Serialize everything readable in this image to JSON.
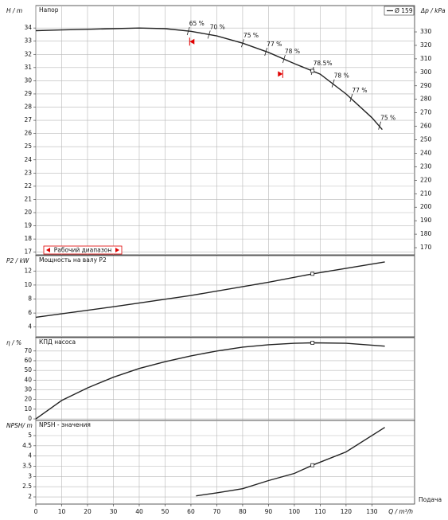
{
  "chart_data": [
    {
      "type": "line",
      "title": "Напор",
      "ylabel": "H / m",
      "y2label": "Δp / kPa",
      "x": [
        0,
        10,
        20,
        30,
        40,
        50,
        60,
        70,
        80,
        90,
        100,
        110,
        120,
        130,
        134
      ],
      "series": [
        {
          "name": "Ø 159",
          "color": "#222222",
          "values": [
            33.8,
            33.85,
            33.9,
            33.95,
            34.0,
            33.95,
            33.75,
            33.4,
            32.85,
            32.15,
            31.3,
            30.5,
            29.0,
            27.2,
            26.3
          ]
        }
      ],
      "annotations": [
        {
          "x": 59,
          "y": 33.77,
          "text": "65 %"
        },
        {
          "x": 67,
          "y": 33.5,
          "text": "70 %"
        },
        {
          "x": 80,
          "y": 32.85,
          "text": "75 %"
        },
        {
          "x": 89,
          "y": 32.2,
          "text": "77 %"
        },
        {
          "x": 96,
          "y": 31.65,
          "text": "78 %"
        },
        {
          "x": 107,
          "y": 30.75,
          "text": "78.5%"
        },
        {
          "x": 115,
          "y": 29.8,
          "text": "78 %"
        },
        {
          "x": 122,
          "y": 28.7,
          "text": "77 %"
        },
        {
          "x": 133,
          "y": 26.6,
          "text": "75 %"
        }
      ],
      "duty_point": {
        "x": 107,
        "y": 30.75
      },
      "work_range": [
        59.5,
        95.5
      ],
      "work_range_label": "Рабочий диапазон",
      "xlim": [
        0,
        146.5
      ],
      "xticks": [
        0,
        10,
        20,
        30,
        40,
        50,
        60,
        70,
        80,
        90,
        100,
        110,
        120,
        130
      ],
      "ylim": [
        16.8,
        35.7
      ],
      "yticks": [
        17,
        18,
        19,
        20,
        21,
        22,
        23,
        24,
        25,
        26,
        27,
        28,
        29,
        30,
        31,
        32,
        33,
        34
      ],
      "y2lim": [
        164.7,
        349.5
      ],
      "y2ticks": [
        170,
        180,
        190,
        200,
        210,
        220,
        230,
        240,
        250,
        260,
        270,
        280,
        290,
        300,
        310,
        320,
        330
      ],
      "grid": true,
      "legend": "top-right"
    },
    {
      "type": "line",
      "title": "Мощность на валу P2",
      "ylabel": "P2 / kW",
      "x": [
        0,
        30,
        60,
        90,
        107,
        135
      ],
      "series": [
        {
          "color": "#222222",
          "values": [
            5.4,
            6.9,
            8.5,
            10.4,
            11.6,
            13.3
          ]
        }
      ],
      "duty_point": {
        "x": 107,
        "y": 11.6
      },
      "xlim": [
        0,
        146.5
      ],
      "xticks": [
        0,
        10,
        20,
        30,
        40,
        50,
        60,
        70,
        80,
        90,
        100,
        110,
        120,
        130
      ],
      "ylim": [
        2.6,
        14.2
      ],
      "yticks": [
        4,
        6,
        8,
        10,
        12
      ],
      "grid": true
    },
    {
      "type": "line",
      "title": "КПД насоса",
      "ylabel": "η / %",
      "x": [
        0,
        10,
        20,
        30,
        40,
        50,
        60,
        70,
        80,
        90,
        100,
        107,
        120,
        135
      ],
      "series": [
        {
          "color": "#222222",
          "values": [
            0,
            19,
            32,
            43,
            52,
            59,
            65,
            70,
            74,
            76.5,
            78,
            78.5,
            78,
            75
          ]
        }
      ],
      "duty_point": {
        "x": 107,
        "y": 78.5
      },
      "xlim": [
        0,
        146.5
      ],
      "xticks": [
        0,
        10,
        20,
        30,
        40,
        50,
        60,
        70,
        80,
        90,
        100,
        110,
        120,
        130
      ],
      "ylim": [
        -1.6,
        83.8
      ],
      "yticks": [
        0,
        10,
        20,
        30,
        40,
        50,
        60,
        70
      ],
      "grid": true
    },
    {
      "type": "line",
      "title": "NPSH - значения",
      "ylabel": "NPSH/ m",
      "xlabel": "Q / m³/h",
      "x_caption": "Подача",
      "x": [
        62,
        70,
        80,
        90,
        100,
        107,
        120,
        135
      ],
      "series": [
        {
          "color": "#222222",
          "values": [
            2.05,
            2.2,
            2.4,
            2.8,
            3.15,
            3.55,
            4.2,
            5.4
          ]
        }
      ],
      "duty_point": {
        "x": 107,
        "y": 3.55
      },
      "xlim": [
        0,
        146.5
      ],
      "xticks": [
        0,
        10,
        20,
        30,
        40,
        50,
        60,
        70,
        80,
        90,
        100,
        110,
        120,
        130
      ],
      "ylim": [
        1.65,
        5.74
      ],
      "yticks": [
        2,
        2.5,
        3,
        3.5,
        4,
        4.5,
        5
      ],
      "grid": true
    }
  ]
}
